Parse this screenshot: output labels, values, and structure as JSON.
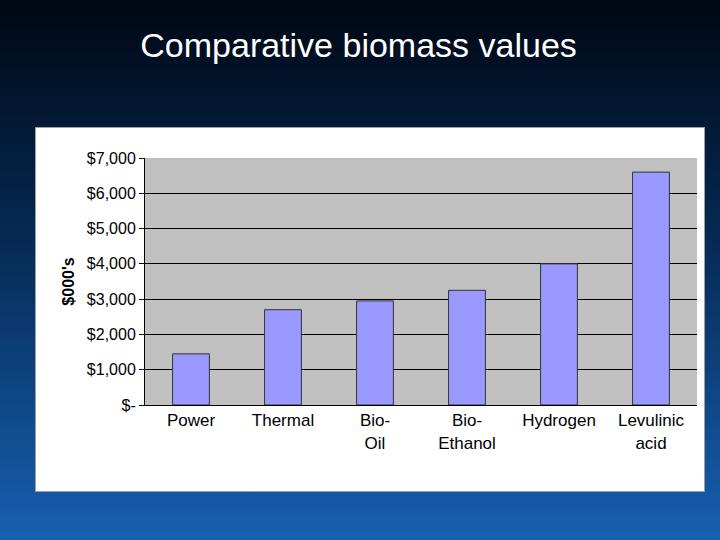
{
  "chart_data": {
    "type": "bar",
    "title": "Comparative biomass values",
    "ylabel": "$000's",
    "categories": [
      "Power",
      "Thermal",
      "Bio-Oil",
      "Bio-Ethanol",
      "Hydrogen",
      "Levulinic acid"
    ],
    "values": [
      1450,
      2700,
      2950,
      3250,
      4000,
      6600
    ],
    "color": "#9999ff",
    "ylim": [
      0,
      7000
    ],
    "yticks": [
      {
        "value": 0,
        "label": "$-"
      },
      {
        "value": 1000,
        "label": "$1,000"
      },
      {
        "value": 2000,
        "label": "$2,000"
      },
      {
        "value": 3000,
        "label": "$3,000"
      },
      {
        "value": 4000,
        "label": "$4,000"
      },
      {
        "value": 5000,
        "label": "$5,000"
      },
      {
        "value": 6000,
        "label": "$6,000"
      },
      {
        "value": 7000,
        "label": "$7,000"
      }
    ],
    "grid": true
  }
}
